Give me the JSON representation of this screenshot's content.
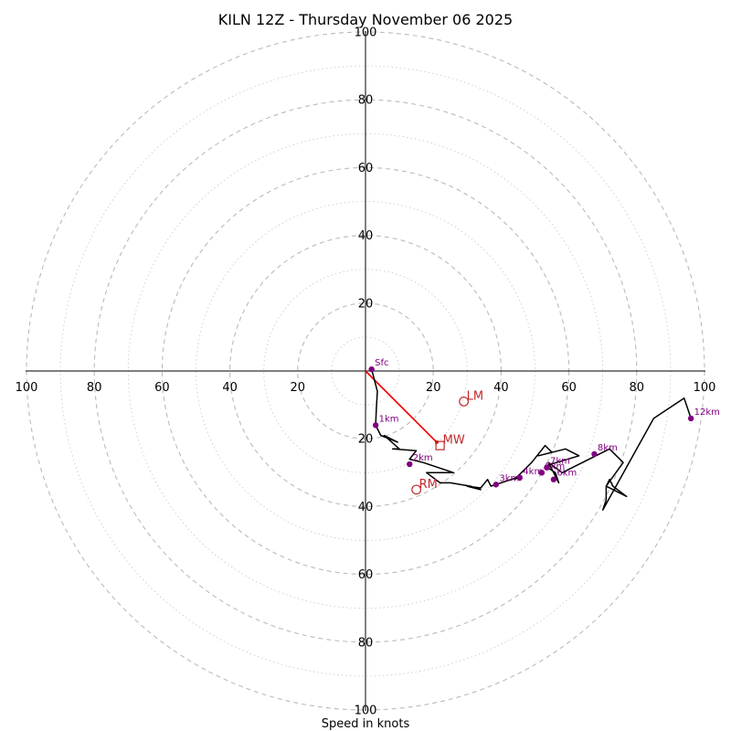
{
  "chart_data": {
    "type": "hodograph",
    "title": "KILN 12Z - Thursday November 06 2025",
    "xlabel": "Speed in knots",
    "units": "knots",
    "max_speed": 100,
    "ring_labels": [
      "20",
      "40",
      "60",
      "80",
      "100"
    ],
    "x_tick_labels": [
      "100",
      "80",
      "60",
      "40",
      "20",
      "20",
      "40",
      "60",
      "80",
      "100"
    ],
    "hodograph": {
      "u": [
        1.8,
        3.5,
        3.2,
        3.0,
        4.5,
        9.5,
        5.5,
        10,
        8,
        15,
        13,
        17,
        26,
        18,
        22,
        25,
        31,
        34,
        30,
        34,
        36,
        37,
        46,
        44,
        49,
        53,
        55,
        51,
        59,
        63,
        53,
        56,
        57,
        54,
        58,
        72,
        76,
        71,
        77,
        73,
        72,
        71,
        71,
        70,
        80,
        85,
        94,
        96
      ],
      "v": [
        0.5,
        -6,
        -11,
        -16,
        -19,
        -21,
        -19,
        -23,
        -23,
        -23.5,
        -26,
        -27,
        -30,
        -30,
        -33,
        -33,
        -34,
        -35,
        -34,
        -34.5,
        -32,
        -34,
        -31,
        -32,
        -27,
        -22,
        -24,
        -25,
        -23,
        -25,
        -28,
        -30,
        -33,
        -27,
        -30,
        -23,
        -27,
        -34,
        -37,
        -34,
        -32,
        -34,
        -38,
        -41,
        -23,
        -14,
        -8,
        -14
      ]
    },
    "height_markers": [
      {
        "label": "Sfc",
        "u": 1.8,
        "v": 0.5
      },
      {
        "label": "1km",
        "u": 3.0,
        "v": -16
      },
      {
        "label": "2km",
        "u": 13.0,
        "v": -27.5
      },
      {
        "label": "3km",
        "u": 38.5,
        "v": -33.5
      },
      {
        "label": "4km",
        "u": 45.5,
        "v": -31.5
      },
      {
        "label": "5km",
        "u": 52.0,
        "v": -30.0
      },
      {
        "label": "6km",
        "u": 55.5,
        "v": -32.0
      },
      {
        "label": "7km",
        "u": 53.5,
        "v": -28.5
      },
      {
        "label": "8km",
        "u": 67.5,
        "v": -24.5
      },
      {
        "label": "12km",
        "u": 96.0,
        "v": -14.0
      }
    ],
    "storm_motion": {
      "LM": {
        "label": "LM",
        "u": 29,
        "v": -9
      },
      "MW": {
        "label": "MW",
        "u": 22,
        "v": -22
      },
      "RM": {
        "label": "RM",
        "u": 15,
        "v": -35
      },
      "shear_vector": {
        "from": [
          0,
          0
        ],
        "to": [
          21,
          -21
        ]
      }
    },
    "colors": {
      "hodograph": "#000000",
      "markers": "#800080",
      "storm_motion": "#c0282c",
      "shear": "#ee0000",
      "grid": "#bbbbbb"
    }
  }
}
